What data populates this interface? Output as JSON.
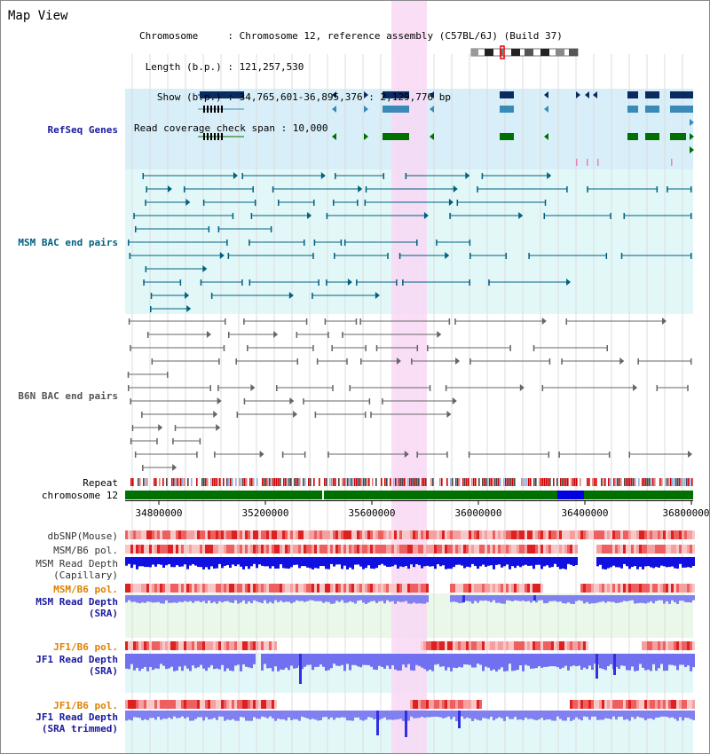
{
  "view": {
    "title": "Map View"
  },
  "header": {
    "chromosome": "Chromosome     : Chromosome 12, reference assembly (C57BL/6J) (Build 37)",
    "length": " Length (b.p.) : 121,257,530",
    "show": "   Show (b.p.) : 34,765,601-36,895,376 : 2,129,776 bp",
    "coverage": "Read coverage check span : 10,000"
  },
  "tracks": {
    "refseq": {
      "label": "RefSeq Genes",
      "color": "#1a1aa0"
    },
    "msm_bac": {
      "label": "MSM BAC end pairs",
      "color": "#006080"
    },
    "b6n_bac": {
      "label": "B6N BAC end pairs",
      "color": "#555555"
    },
    "repeat": {
      "label": "Repeat"
    },
    "chromosome": {
      "label": "chromosome 12"
    },
    "dbsnp": {
      "label": "dbSNP(Mouse)"
    },
    "msm_pol1": {
      "label": "MSM/B6 pol."
    },
    "msm_depth_cap": {
      "label": "MSM Read Depth\n(Capillary)",
      "color": "#1a1aa0"
    },
    "msm_pol2": {
      "label": "MSM/B6 pol.",
      "color": "#e08000"
    },
    "msm_depth_sra": {
      "label": "MSM Read Depth\n(SRA)",
      "color": "#1a1aa0"
    },
    "jf1_pol1": {
      "label": "JF1/B6 pol.",
      "color": "#e08000"
    },
    "jf1_depth_sra": {
      "label": "JF1 Read Depth\n(SRA)",
      "color": "#1a1aa0"
    },
    "jf1_pol2": {
      "label": "JF1/B6 pol.",
      "color": "#e08000"
    },
    "jf1_depth_trim": {
      "label": "JF1 Read Depth\n(SRA trimmed)",
      "color": "#1a1aa0"
    }
  },
  "axis": {
    "ticks": [
      {
        "label": "34800000"
      },
      {
        "label": "35200000"
      },
      {
        "label": "35600000"
      },
      {
        "label": "36000000"
      },
      {
        "label": "36400000"
      },
      {
        "label": "36800000"
      }
    ]
  },
  "colors": {
    "highlight": "#f8d8f4",
    "refseq_bg": "#d8eef8",
    "bac_bg": "#e2f8f8",
    "gene_dark": "#0a2a60",
    "gene_mid": "#3a8ab8",
    "gene_green": "#007000",
    "chrom_green": "#007000"
  }
}
